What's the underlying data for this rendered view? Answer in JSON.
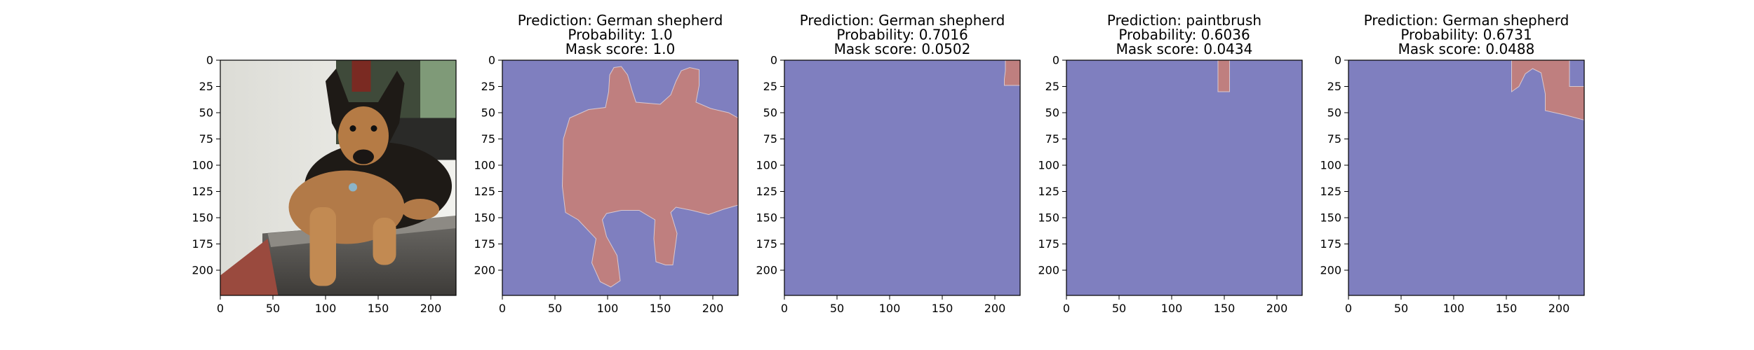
{
  "chart_data": [
    {
      "type": "image",
      "image": "photo-german-shepherd",
      "title_lines": [],
      "xlim": [
        0,
        224
      ],
      "ylim": [
        224,
        0
      ],
      "xticks": [
        0,
        50,
        100,
        150,
        200
      ],
      "yticks": [
        0,
        25,
        50,
        75,
        100,
        125,
        150,
        175,
        200
      ]
    },
    {
      "type": "mask",
      "title_lines": [
        "Prediction: German shepherd",
        "Probability: 1.0",
        "Mask score: 1.0"
      ],
      "xlim": [
        0,
        224
      ],
      "ylim": [
        224,
        0
      ],
      "xticks": [
        0,
        50,
        100,
        150,
        200
      ],
      "yticks": [
        0,
        25,
        50,
        75,
        100,
        125,
        150,
        175,
        200
      ],
      "background_color": "#7f7fbf",
      "mask_color": "#bf7f7f",
      "mask_regions": [
        [
          [
            102,
            14
          ],
          [
            106,
            7
          ],
          [
            113,
            6
          ],
          [
            119,
            14
          ],
          [
            123,
            28
          ],
          [
            127,
            40
          ],
          [
            150,
            42
          ],
          [
            160,
            33
          ],
          [
            165,
            20
          ],
          [
            170,
            10
          ],
          [
            178,
            7
          ],
          [
            187,
            9
          ],
          [
            187,
            24
          ],
          [
            184,
            40
          ],
          [
            198,
            46
          ],
          [
            215,
            50
          ],
          [
            224,
            55
          ],
          [
            224,
            138
          ],
          [
            210,
            142
          ],
          [
            196,
            147
          ],
          [
            180,
            143
          ],
          [
            165,
            140
          ],
          [
            160,
            145
          ],
          [
            166,
            165
          ],
          [
            162,
            195
          ],
          [
            155,
            195
          ],
          [
            146,
            192
          ],
          [
            144,
            170
          ],
          [
            145,
            152
          ],
          [
            130,
            143
          ],
          [
            113,
            143
          ],
          [
            99,
            146
          ],
          [
            95,
            152
          ],
          [
            99,
            168
          ],
          [
            109,
            186
          ],
          [
            112,
            210
          ],
          [
            103,
            216
          ],
          [
            93,
            211
          ],
          [
            85,
            193
          ],
          [
            89,
            170
          ],
          [
            72,
            152
          ],
          [
            60,
            145
          ],
          [
            57,
            120
          ],
          [
            58,
            75
          ],
          [
            64,
            55
          ],
          [
            82,
            47
          ],
          [
            98,
            45
          ],
          [
            101,
            30
          ]
        ]
      ]
    },
    {
      "type": "mask",
      "title_lines": [
        "Prediction: German shepherd",
        "Probability: 0.7016",
        "Mask score: 0.0502"
      ],
      "xlim": [
        0,
        224
      ],
      "ylim": [
        224,
        0
      ],
      "xticks": [
        0,
        50,
        100,
        150,
        200
      ],
      "yticks": [
        0,
        25,
        50,
        75,
        100,
        125,
        150,
        175,
        200
      ],
      "background_color": "#7f7fbf",
      "mask_color": "#bf7f7f",
      "mask_regions": [
        [
          [
            210,
            0
          ],
          [
            224,
            0
          ],
          [
            224,
            24
          ],
          [
            209,
            24
          ],
          [
            209,
            18
          ],
          [
            210,
            10
          ]
        ]
      ]
    },
    {
      "type": "mask",
      "title_lines": [
        "Prediction: paintbrush",
        "Probability: 0.6036",
        "Mask score: 0.0434"
      ],
      "xlim": [
        0,
        224
      ],
      "ylim": [
        224,
        0
      ],
      "xticks": [
        0,
        50,
        100,
        150,
        200
      ],
      "yticks": [
        0,
        25,
        50,
        75,
        100,
        125,
        150,
        175,
        200
      ],
      "background_color": "#7f7fbf",
      "mask_color": "#bf7f7f",
      "mask_regions": [
        [
          [
            144,
            0
          ],
          [
            155,
            0
          ],
          [
            155,
            30
          ],
          [
            144,
            30
          ]
        ]
      ]
    },
    {
      "type": "mask",
      "title_lines": [
        "Prediction: German shepherd",
        "Probability: 0.6731",
        "Mask score: 0.0488"
      ],
      "xlim": [
        0,
        224
      ],
      "ylim": [
        224,
        0
      ],
      "xticks": [
        0,
        50,
        100,
        150,
        200
      ],
      "yticks": [
        0,
        25,
        50,
        75,
        100,
        125,
        150,
        175,
        200
      ],
      "background_color": "#7f7fbf",
      "mask_color": "#bf7f7f",
      "mask_regions": [
        [
          [
            155,
            0
          ],
          [
            210,
            0
          ],
          [
            210,
            25
          ],
          [
            224,
            25
          ],
          [
            224,
            57
          ],
          [
            205,
            52
          ],
          [
            187,
            48
          ],
          [
            187,
            32
          ],
          [
            183,
            12
          ],
          [
            175,
            8
          ],
          [
            168,
            13
          ],
          [
            162,
            25
          ],
          [
            155,
            30
          ]
        ]
      ]
    }
  ]
}
